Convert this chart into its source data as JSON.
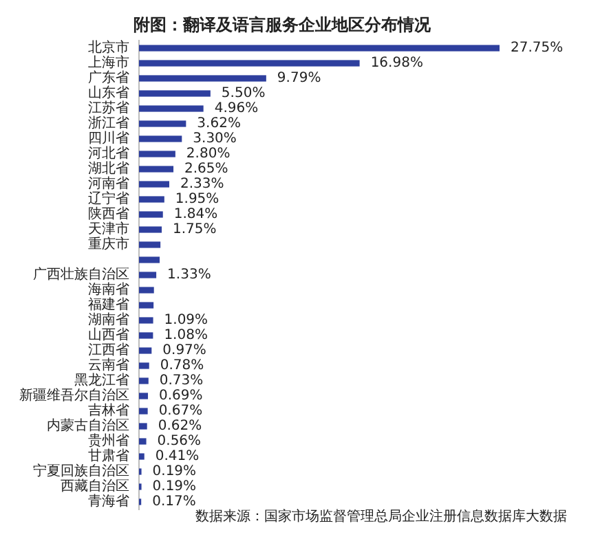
{
  "chart_data": {
    "type": "bar",
    "orientation": "horizontal",
    "title": "附图：翻译及语言服务企业地区分布情况",
    "categories": [
      "北京市",
      "上海市",
      "广东省",
      "山东省",
      "江苏省",
      "浙江省",
      "四川省",
      "河北省",
      "湖北省",
      "河南省",
      "辽宁省",
      "陕西省",
      "天津市",
      "重庆市",
      null,
      "广西壮族自治区",
      "海南省",
      "福建省",
      "湖南省",
      "山西省",
      "江西省",
      "云南省",
      "黑龙江省",
      "新疆维吾尔自治区",
      "吉林省",
      "内蒙古自治区",
      "贵州省",
      "甘肃省",
      "宁夏回族自治区",
      "西藏自治区",
      "青海省"
    ],
    "values": [
      27.75,
      16.98,
      9.79,
      5.5,
      4.96,
      3.62,
      3.3,
      2.8,
      2.65,
      2.33,
      1.95,
      1.84,
      1.75,
      1.65,
      1.59,
      1.33,
      1.15,
      1.12,
      1.09,
      1.08,
      0.97,
      0.78,
      0.73,
      0.69,
      0.67,
      0.62,
      0.56,
      0.41,
      0.19,
      0.19,
      0.17
    ],
    "value_labels": [
      "27.75%",
      "16.98%",
      "9.79%",
      "5.50%",
      "4.96%",
      "3.62%",
      "3.30%",
      "2.80%",
      "2.65%",
      "2.33%",
      "1.95%",
      "1.84%",
      "1.75%",
      null,
      null,
      "1.33%",
      null,
      null,
      "1.09%",
      "1.08%",
      "0.97%",
      "0.78%",
      "0.73%",
      "0.69%",
      "0.67%",
      "0.62%",
      "0.56%",
      "0.41%",
      "0.19%",
      "0.19%",
      "0.17%"
    ],
    "color": "#2e3f9e",
    "annotations": [
      "数据来源：国家市场监督管理总局企业注册信息数据库大数据"
    ]
  }
}
